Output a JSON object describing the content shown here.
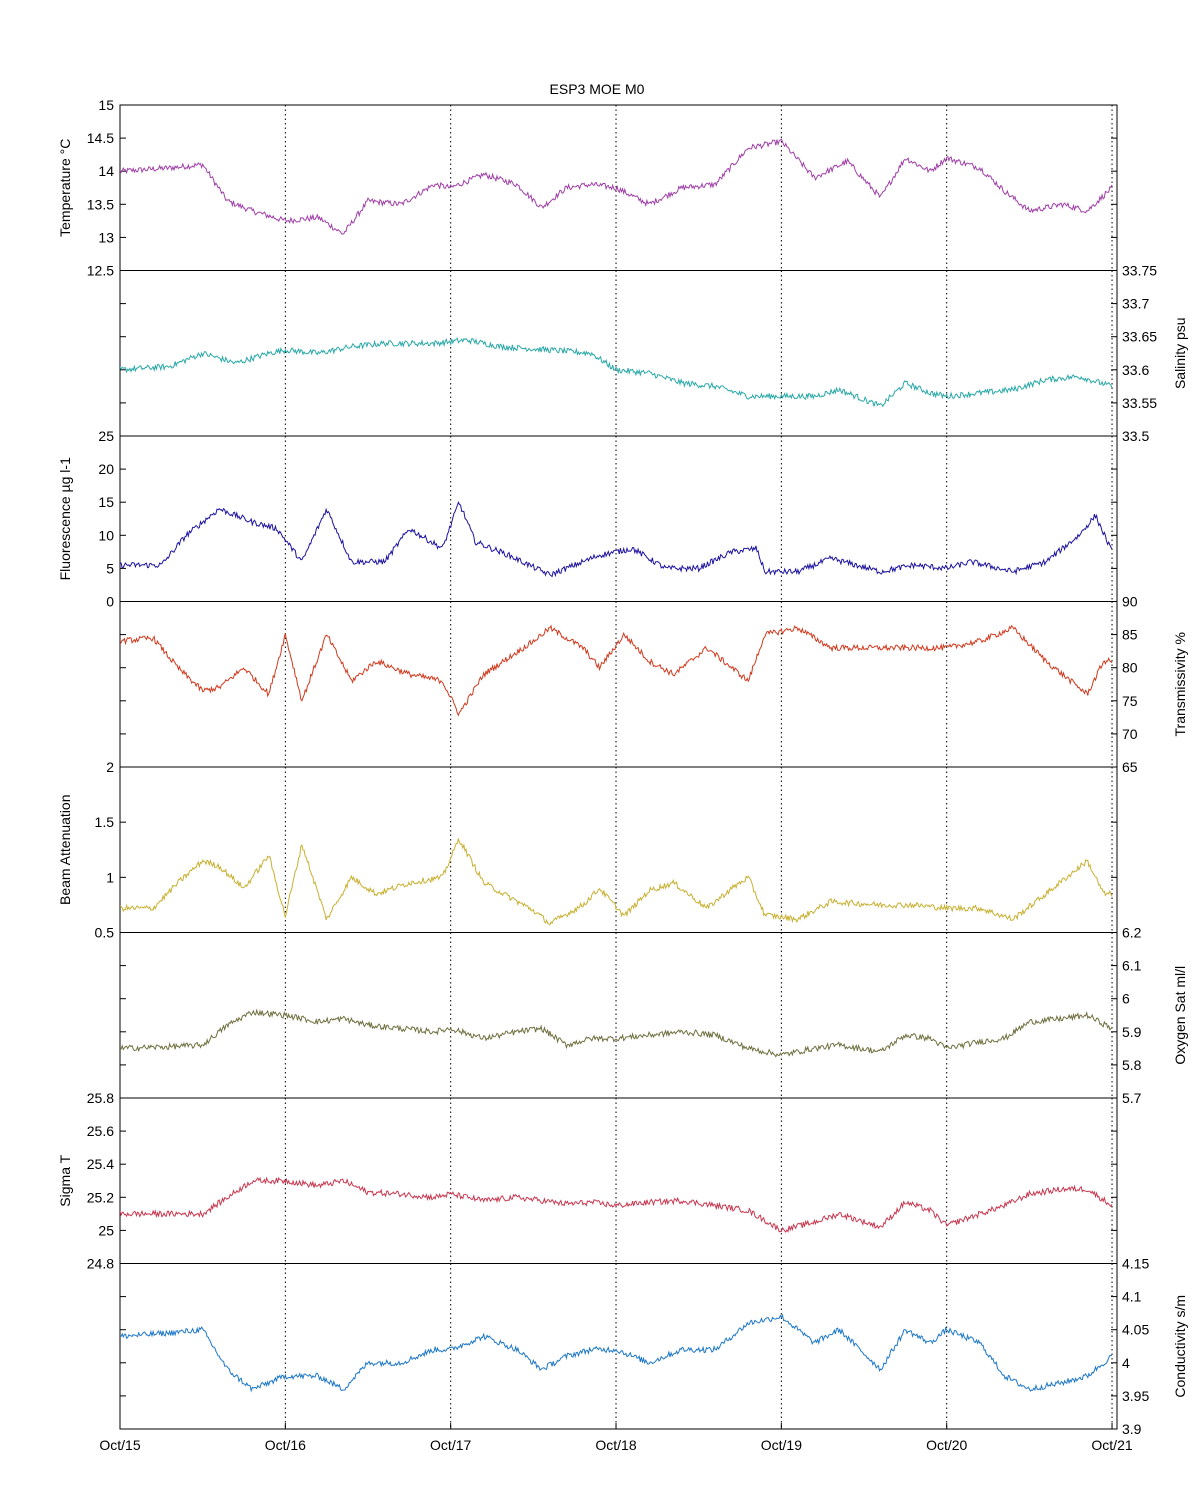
{
  "chart_data": {
    "type": "line",
    "title": "ESP3 MOE   M0",
    "grid": "vertical dotted lines at each day",
    "x_axis": {
      "label": "",
      "range": [
        "Oct/15",
        "Oct/21"
      ],
      "tick_labels": [
        "Oct/15",
        "Oct/16",
        "Oct/17",
        "Oct/18",
        "Oct/19",
        "Oct/20",
        "Oct/21"
      ]
    },
    "panels": [
      {
        "name": "temperature",
        "ylabel": "Temperature °C",
        "axis_side": "left",
        "ylim": [
          12.5,
          15
        ],
        "ticks": [
          12.5,
          13,
          13.5,
          14,
          14.5,
          15
        ],
        "color": "#a040a8",
        "x": [
          0,
          0.3,
          0.5,
          0.65,
          0.8,
          1.0,
          1.2,
          1.35,
          1.5,
          1.7,
          1.9,
          2.0,
          2.2,
          2.4,
          2.55,
          2.7,
          2.85,
          3.0,
          3.2,
          3.4,
          3.6,
          3.8,
          4.0,
          4.2,
          4.4,
          4.6,
          4.75,
          4.9,
          5.0,
          5.2,
          5.35,
          5.5,
          5.7,
          5.85,
          6.0
        ],
        "values": [
          14.0,
          14.05,
          14.1,
          13.55,
          13.4,
          13.25,
          13.3,
          13.05,
          13.55,
          13.5,
          13.8,
          13.75,
          13.95,
          13.8,
          13.45,
          13.75,
          13.8,
          13.75,
          13.5,
          13.75,
          13.8,
          14.35,
          14.45,
          13.9,
          14.15,
          13.6,
          14.2,
          14.0,
          14.2,
          14.05,
          13.7,
          13.4,
          13.5,
          13.4,
          13.75
        ]
      },
      {
        "name": "salinity",
        "ylabel": "Salinity psu",
        "axis_side": "right",
        "ylim": [
          33.5,
          33.75
        ],
        "ticks": [
          33.5,
          33.55,
          33.6,
          33.65,
          33.7,
          33.75
        ],
        "color": "#2aa8a8",
        "x": [
          0,
          0.3,
          0.5,
          0.7,
          0.9,
          1.0,
          1.2,
          1.4,
          1.6,
          1.9,
          2.1,
          2.3,
          2.6,
          2.85,
          3.0,
          3.2,
          3.4,
          3.6,
          3.8,
          4.0,
          4.2,
          4.35,
          4.6,
          4.75,
          4.9,
          5.0,
          5.2,
          5.4,
          5.6,
          5.8,
          6.0
        ],
        "values": [
          33.6,
          33.605,
          33.625,
          33.61,
          33.625,
          33.63,
          33.625,
          33.635,
          33.64,
          33.64,
          33.645,
          33.635,
          33.63,
          33.625,
          33.6,
          33.595,
          33.58,
          33.575,
          33.56,
          33.56,
          33.56,
          33.57,
          33.545,
          33.58,
          33.565,
          33.56,
          33.565,
          33.57,
          33.585,
          33.59,
          33.575
        ]
      },
      {
        "name": "fluorescence",
        "ylabel": "Fluorescence µg l-1",
        "axis_side": "left",
        "ylim": [
          0,
          25
        ],
        "ticks": [
          0,
          5,
          10,
          15,
          20,
          25
        ],
        "color": "#1e14a0",
        "x": [
          0,
          0.25,
          0.4,
          0.6,
          0.8,
          0.95,
          1.1,
          1.25,
          1.4,
          1.6,
          1.75,
          1.95,
          2.05,
          2.15,
          2.35,
          2.6,
          2.9,
          3.1,
          3.3,
          3.5,
          3.7,
          3.85,
          3.9,
          4.1,
          4.3,
          4.6,
          4.8,
          5.0,
          5.15,
          5.4,
          5.6,
          5.8,
          5.9,
          6.0
        ],
        "values": [
          5.5,
          5.5,
          10,
          14,
          12,
          11,
          6,
          14,
          6,
          6,
          11,
          8,
          15,
          9,
          7,
          4,
          7,
          8,
          5,
          5,
          7.5,
          8,
          4.5,
          4.5,
          6.5,
          4.5,
          5.5,
          5,
          6,
          4.5,
          6,
          10,
          13,
          7.5
        ]
      },
      {
        "name": "transmissivity",
        "ylabel": "Transmissivity %",
        "axis_side": "right",
        "ylim": [
          65,
          90
        ],
        "ticks": [
          65,
          70,
          75,
          80,
          85,
          90
        ],
        "color": "#d03a1e",
        "x": [
          0,
          0.2,
          0.35,
          0.5,
          0.6,
          0.75,
          0.9,
          1.0,
          1.1,
          1.25,
          1.4,
          1.55,
          1.75,
          1.95,
          2.05,
          2.2,
          2.5,
          2.6,
          2.8,
          2.9,
          3.05,
          3.2,
          3.35,
          3.55,
          3.7,
          3.8,
          3.9,
          4.1,
          4.3,
          4.6,
          4.8,
          5.0,
          5.2,
          5.4,
          5.6,
          5.85,
          5.95,
          6.0
        ],
        "values": [
          84,
          84.5,
          80,
          76.5,
          77,
          80,
          76,
          85,
          75,
          85,
          78,
          81,
          79,
          78,
          73,
          79,
          84,
          86,
          83,
          80,
          85,
          81,
          79,
          83,
          80,
          78,
          85,
          86,
          83,
          83,
          83,
          83,
          84,
          86,
          81,
          76,
          81,
          81
        ]
      },
      {
        "name": "beam-attenuation",
        "ylabel": "Beam Attenuation",
        "axis_side": "left",
        "ylim": [
          0.5,
          2
        ],
        "ticks": [
          0.5,
          1,
          1.5,
          2
        ],
        "color": "#c8b032",
        "x": [
          0,
          0.2,
          0.35,
          0.5,
          0.6,
          0.75,
          0.9,
          1.0,
          1.1,
          1.25,
          1.4,
          1.55,
          1.75,
          1.95,
          2.05,
          2.2,
          2.5,
          2.6,
          2.8,
          2.9,
          3.05,
          3.2,
          3.35,
          3.55,
          3.7,
          3.8,
          3.9,
          4.1,
          4.3,
          4.6,
          4.8,
          5.0,
          5.2,
          5.4,
          5.6,
          5.85,
          5.95,
          6.0
        ],
        "values": [
          0.72,
          0.72,
          0.95,
          1.15,
          1.1,
          0.9,
          1.2,
          0.65,
          1.3,
          0.62,
          1.0,
          0.85,
          0.95,
          1.0,
          1.35,
          0.95,
          0.7,
          0.58,
          0.75,
          0.9,
          0.65,
          0.88,
          0.95,
          0.72,
          0.9,
          1.0,
          0.66,
          0.62,
          0.78,
          0.75,
          0.75,
          0.72,
          0.72,
          0.62,
          0.85,
          1.15,
          0.85,
          0.85
        ]
      },
      {
        "name": "oxygen-sat",
        "ylabel": "Oxygen Sat ml/l",
        "axis_side": "right",
        "ylim": [
          5.7,
          6.2
        ],
        "ticks": [
          5.7,
          5.8,
          5.9,
          6,
          6.1,
          6.2
        ],
        "color": "#707040",
        "x": [
          0,
          0.3,
          0.5,
          0.65,
          0.8,
          1.0,
          1.2,
          1.35,
          1.5,
          1.7,
          1.9,
          2.0,
          2.2,
          2.4,
          2.55,
          2.7,
          2.85,
          3.0,
          3.2,
          3.4,
          3.6,
          3.8,
          4.0,
          4.2,
          4.35,
          4.6,
          4.75,
          4.9,
          5.0,
          5.2,
          5.35,
          5.5,
          5.7,
          5.85,
          6.0
        ],
        "values": [
          5.85,
          5.855,
          5.86,
          5.92,
          5.96,
          5.95,
          5.93,
          5.94,
          5.92,
          5.91,
          5.9,
          5.91,
          5.88,
          5.9,
          5.91,
          5.86,
          5.88,
          5.88,
          5.89,
          5.9,
          5.89,
          5.85,
          5.83,
          5.85,
          5.86,
          5.84,
          5.89,
          5.88,
          5.85,
          5.87,
          5.88,
          5.93,
          5.94,
          5.95,
          5.91
        ]
      },
      {
        "name": "sigma-t",
        "ylabel": "Sigma T",
        "axis_side": "left",
        "ylim": [
          24.8,
          25.8
        ],
        "ticks": [
          24.8,
          25,
          25.2,
          25.4,
          25.6,
          25.8
        ],
        "color": "#c83850",
        "x": [
          0,
          0.3,
          0.5,
          0.65,
          0.8,
          1.0,
          1.2,
          1.35,
          1.5,
          1.7,
          1.9,
          2.0,
          2.2,
          2.4,
          2.55,
          2.7,
          2.85,
          3.0,
          3.2,
          3.4,
          3.6,
          3.8,
          4.0,
          4.2,
          4.35,
          4.6,
          4.75,
          4.9,
          5.0,
          5.2,
          5.35,
          5.5,
          5.7,
          5.85,
          6.0
        ],
        "values": [
          25.1,
          25.1,
          25.1,
          25.2,
          25.3,
          25.3,
          25.27,
          25.3,
          25.23,
          25.22,
          25.2,
          25.22,
          25.18,
          25.2,
          25.18,
          25.16,
          25.17,
          25.15,
          25.17,
          25.18,
          25.15,
          25.12,
          25.0,
          25.05,
          25.1,
          25.02,
          25.17,
          25.12,
          25.03,
          25.1,
          25.15,
          25.22,
          25.25,
          25.25,
          25.15
        ]
      },
      {
        "name": "conductivity",
        "ylabel": "Conductivity s/m",
        "axis_side": "right",
        "ylim": [
          3.9,
          4.15
        ],
        "ticks": [
          3.9,
          3.95,
          4,
          4.05,
          4.1,
          4.15
        ],
        "color": "#1e78c8",
        "x": [
          0,
          0.3,
          0.5,
          0.65,
          0.8,
          1.0,
          1.2,
          1.35,
          1.5,
          1.7,
          1.9,
          2.0,
          2.2,
          2.4,
          2.55,
          2.7,
          2.85,
          3.0,
          3.2,
          3.4,
          3.6,
          3.8,
          4.0,
          4.2,
          4.35,
          4.6,
          4.75,
          4.9,
          5.0,
          5.2,
          5.35,
          5.5,
          5.7,
          5.85,
          6.0
        ],
        "values": [
          4.04,
          4.045,
          4.05,
          3.99,
          3.96,
          3.98,
          3.98,
          3.96,
          4.0,
          4.0,
          4.02,
          4.02,
          4.04,
          4.02,
          3.99,
          4.01,
          4.02,
          4.02,
          4.0,
          4.02,
          4.02,
          4.06,
          4.07,
          4.03,
          4.05,
          3.99,
          4.05,
          4.03,
          4.05,
          4.03,
          3.98,
          3.96,
          3.97,
          3.98,
          4.01
        ]
      }
    ]
  }
}
